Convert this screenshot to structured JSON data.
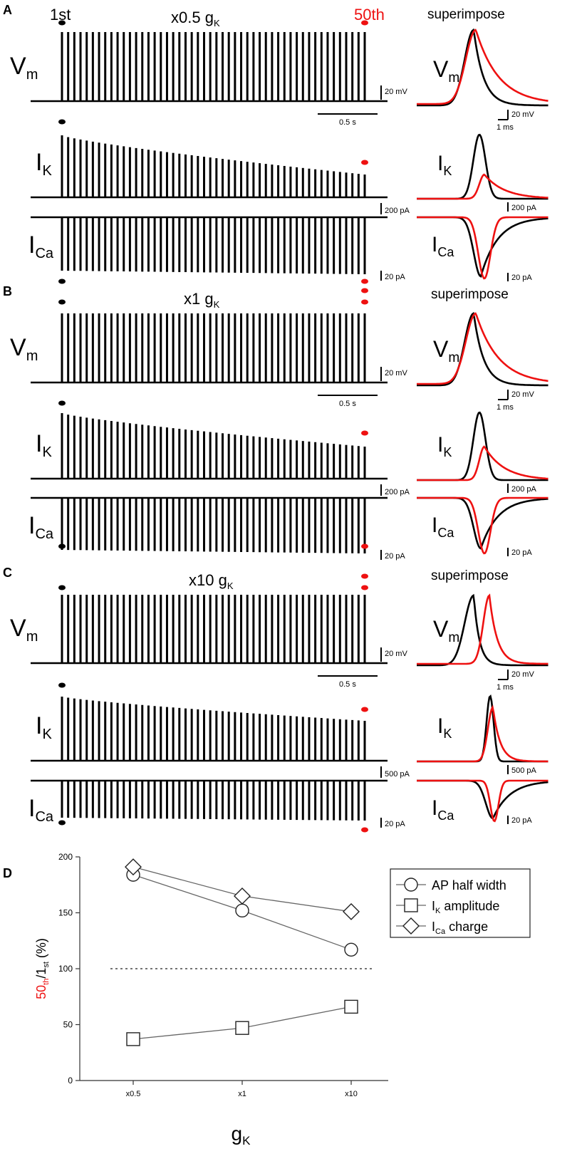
{
  "colors": {
    "black": "#000000",
    "red": "#ee1111",
    "axis": "#333333",
    "line": "#666666"
  },
  "labels": {
    "first": "1st",
    "fiftieth": "50th",
    "superimpose": "superimpose",
    "vm_main": "V",
    "vm_sub": "m",
    "ik_main": "I",
    "ik_sub": "K",
    "ica_main": "I",
    "ica_sub": "Ca"
  },
  "panels": [
    {
      "letter": "A",
      "condition_main": "x0.5 g",
      "condition_sub": "K",
      "vm_scale": "20 mV",
      "time_scale": "0.5 s",
      "ik_scale": "200 pA",
      "ica_scale": "20 pA",
      "sup_vm_scale": "20 mV",
      "sup_time_scale": "1 ms",
      "sup_ik_scale": "200 pA",
      "sup_ica_scale": "20 pA"
    },
    {
      "letter": "B",
      "condition_main": "x1 g",
      "condition_sub": "K",
      "vm_scale": "20 mV",
      "time_scale": "0.5 s",
      "ik_scale": "200 pA",
      "ica_scale": "20 pA",
      "sup_vm_scale": "20 mV",
      "sup_time_scale": "1 ms",
      "sup_ik_scale": "200 pA",
      "sup_ica_scale": "20 pA"
    },
    {
      "letter": "C",
      "condition_main": "x10 g",
      "condition_sub": "K",
      "vm_scale": "20 mV",
      "time_scale": "0.5 s",
      "ik_scale": "500 pA",
      "ica_scale": "20 pA",
      "sup_vm_scale": "20 mV",
      "sup_time_scale": "1 ms",
      "sup_ik_scale": "500 pA",
      "sup_ica_scale": "20 pA"
    }
  ],
  "panel_d": {
    "letter": "D",
    "ylabel_red": "50",
    "ylabel_red_sub": "th",
    "ylabel_mid": "/1",
    "ylabel_sub": "st",
    "ylabel_unit": " (%)",
    "xlabel_main": "g",
    "xlabel_sub": "K"
  },
  "chart_data": {
    "type": "line",
    "title": "",
    "categories": [
      "x0.5",
      "x1",
      "x10"
    ],
    "yticks": [
      0,
      50,
      100,
      150,
      200
    ],
    "ylim": [
      0,
      200
    ],
    "reference_line": 100,
    "legend_position": "top-right",
    "series": [
      {
        "name": "AP half width",
        "marker": "circle",
        "values": [
          184,
          152,
          117
        ]
      },
      {
        "name": "I_K amplitude",
        "marker": "square",
        "values": [
          37,
          47,
          66
        ]
      },
      {
        "name": "I_Ca charge",
        "marker": "diamond",
        "values": [
          191,
          165,
          151
        ]
      }
    ],
    "legend": [
      {
        "main": "AP half width",
        "sub": "",
        "tail": ""
      },
      {
        "main": "I",
        "sub": "K",
        "tail": " amplitude"
      },
      {
        "main": "I",
        "sub": "Ca",
        "tail": " charge"
      }
    ]
  }
}
